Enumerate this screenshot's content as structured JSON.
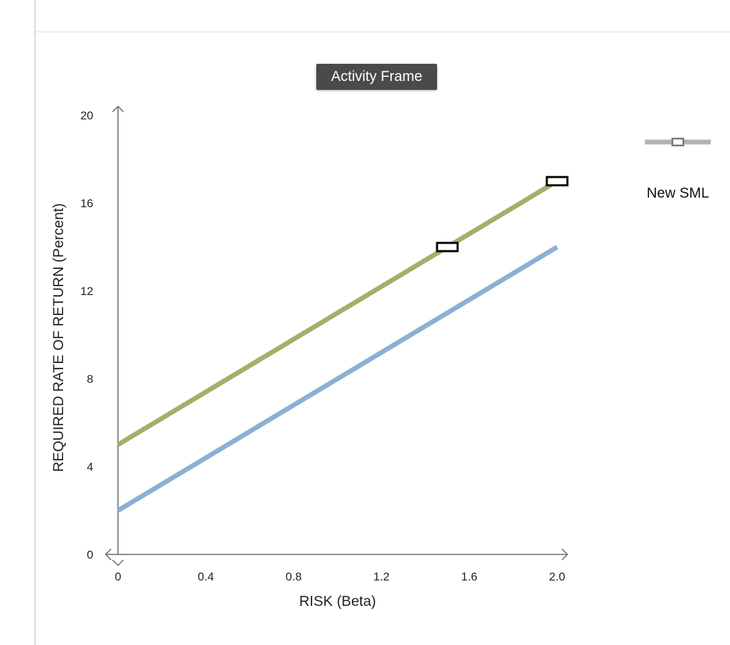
{
  "frame_badge": "Activity Frame",
  "legend": {
    "label": "New SML",
    "colors": {
      "line": "#b3b3b3",
      "marker": "#777777"
    }
  },
  "chart_data": {
    "type": "line",
    "xlabel": "RISK (Beta)",
    "ylabel": "REQUIRED RATE OF RETURN (Percent)",
    "xlim": [
      0,
      2.0
    ],
    "ylim": [
      0,
      20
    ],
    "x_ticks": [
      {
        "value": 0,
        "label": "0"
      },
      {
        "value": 0.4,
        "label": "0.4"
      },
      {
        "value": 0.8,
        "label": "0.8"
      },
      {
        "value": 1.2,
        "label": "1.2"
      },
      {
        "value": 1.6,
        "label": "1.6"
      },
      {
        "value": 2.0,
        "label": "2.0"
      }
    ],
    "y_ticks": [
      {
        "value": 0,
        "label": "0"
      },
      {
        "value": 4,
        "label": "4"
      },
      {
        "value": 8,
        "label": "8"
      },
      {
        "value": 12,
        "label": "12"
      },
      {
        "value": 16,
        "label": "16"
      },
      {
        "value": 20,
        "label": "20"
      }
    ],
    "grid": false,
    "series": [
      {
        "color": "#a9ad6a",
        "points": [
          [
            0,
            5
          ],
          [
            2.0,
            17
          ]
        ]
      },
      {
        "color": "#8cb0d4",
        "points": [
          [
            0,
            2
          ],
          [
            2.0,
            14
          ]
        ]
      }
    ],
    "markers": [
      {
        "x": 1.5,
        "y": 14
      },
      {
        "x": 2.0,
        "y": 17
      }
    ]
  }
}
